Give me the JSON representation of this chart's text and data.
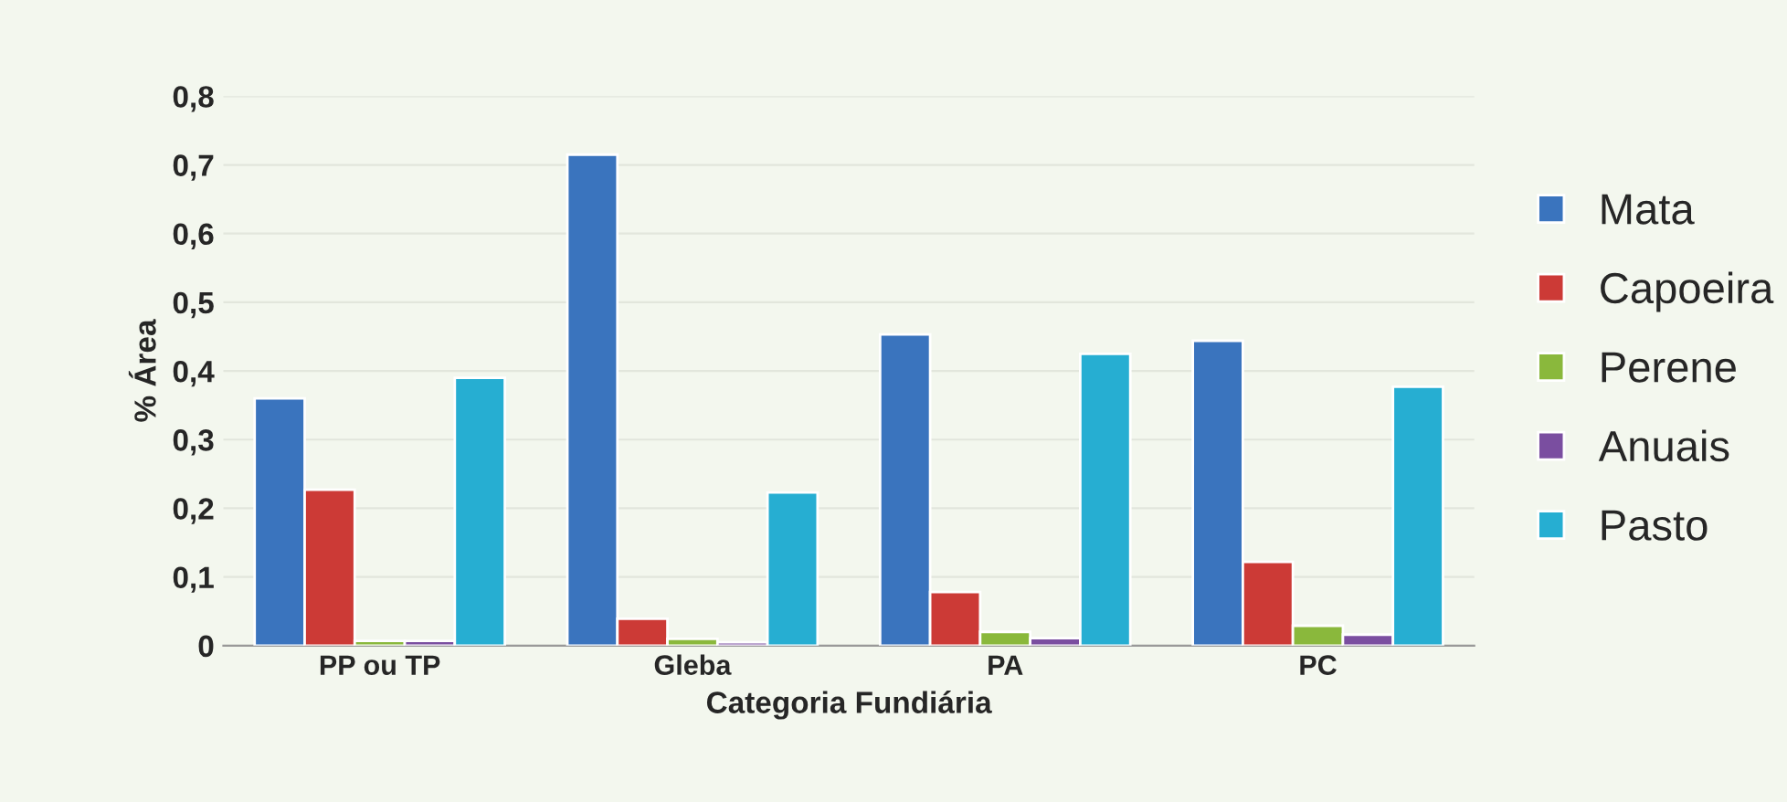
{
  "chart_data": {
    "type": "bar",
    "xlabel": "Categoria Fundiária",
    "ylabel": "% Área",
    "categories": [
      "PP ou TP",
      "Gleba",
      "PA",
      "PC"
    ],
    "series": [
      {
        "name": "Mata",
        "color": "#3a74be",
        "values": [
          0.36,
          0.715,
          0.453,
          0.444
        ]
      },
      {
        "name": "Capoeira",
        "color": "#cc3a36",
        "values": [
          0.227,
          0.039,
          0.078,
          0.122
        ]
      },
      {
        "name": "Perene",
        "color": "#8ab83c",
        "values": [
          0.007,
          0.01,
          0.02,
          0.029
        ]
      },
      {
        "name": "Anuais",
        "color": "#7a4ea0",
        "values": [
          0.007,
          0.005,
          0.011,
          0.016
        ]
      },
      {
        "name": "Pasto",
        "color": "#26aed2",
        "values": [
          0.39,
          0.223,
          0.425,
          0.377
        ]
      }
    ],
    "ylim": [
      0,
      0.8
    ],
    "yticks": [
      {
        "value": 0,
        "label": "0"
      },
      {
        "value": 0.1,
        "label": "0,1"
      },
      {
        "value": 0.2,
        "label": "0,2"
      },
      {
        "value": 0.3,
        "label": "0,3"
      },
      {
        "value": 0.4,
        "label": "0,4"
      },
      {
        "value": 0.5,
        "label": "0,5"
      },
      {
        "value": 0.6,
        "label": "0,6"
      },
      {
        "value": 0.7,
        "label": "0,7"
      },
      {
        "value": 0.8,
        "label": "0,8"
      }
    ],
    "grid": "y",
    "legend": "right"
  }
}
